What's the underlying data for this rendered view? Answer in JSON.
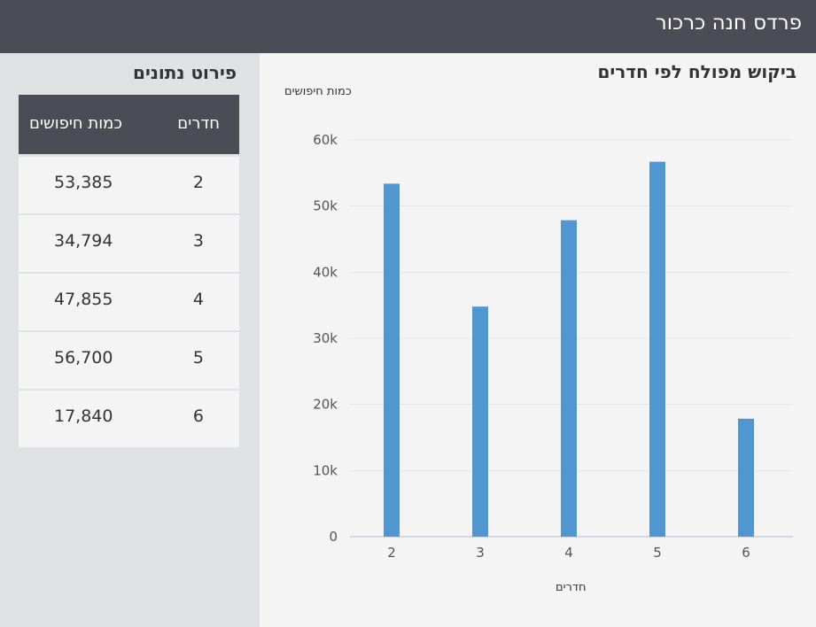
{
  "header": {
    "title": "פרדס חנה כרכור"
  },
  "sidebar": {
    "heading": "פירוט נתונים",
    "columns": {
      "rooms": "חדרים",
      "count": "כמות חיפושים"
    },
    "rows": [
      {
        "rooms": "2",
        "count": "53,385"
      },
      {
        "rooms": "3",
        "count": "34,794"
      },
      {
        "rooms": "4",
        "count": "47,855"
      },
      {
        "rooms": "5",
        "count": "56,700"
      },
      {
        "rooms": "6",
        "count": "17,840"
      }
    ]
  },
  "chart_data": {
    "type": "bar",
    "title": "ביקוש מפולח לפי חדרים",
    "xlabel": "חדרים",
    "ylabel": "כמות חיפושים",
    "categories": [
      "2",
      "3",
      "4",
      "5",
      "6"
    ],
    "values": [
      53385,
      34794,
      47855,
      56700,
      17840
    ],
    "ylim": [
      0,
      60000
    ],
    "yticks": [
      0,
      10000,
      20000,
      30000,
      40000,
      50000,
      60000
    ],
    "ytick_labels": [
      "0",
      "10k",
      "20k",
      "30k",
      "40k",
      "50k",
      "60k"
    ],
    "grid": true,
    "colors": {
      "bar": "#5096d0",
      "grid": "#e4e4e8",
      "axis": "#c9cfe0"
    }
  }
}
